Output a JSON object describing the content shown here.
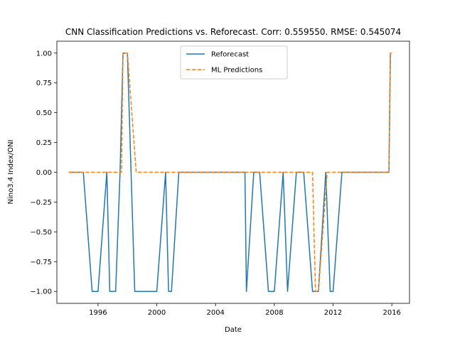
{
  "chart_data": {
    "type": "line",
    "title": "CNN Classification Predictions vs. Reforecast. Corr: 0.559550. RMSE: 0.545074",
    "xlabel": "Date",
    "ylabel": "Nino3.4 Index/ONI",
    "xlim": [
      1993.2,
      2017.2
    ],
    "ylim": [
      -1.1,
      1.1
    ],
    "x_ticks": [
      1996,
      2000,
      2004,
      2008,
      2012,
      2016
    ],
    "x_tick_labels": [
      "1996",
      "2000",
      "2004",
      "2008",
      "2012",
      "2016"
    ],
    "y_ticks": [
      -1.0,
      -0.75,
      -0.5,
      -0.25,
      0.0,
      0.25,
      0.5,
      0.75,
      1.0
    ],
    "y_tick_labels": [
      "−1.00",
      "−0.75",
      "−0.50",
      "−0.25",
      "0.00",
      "0.25",
      "0.50",
      "0.75",
      "1.00"
    ],
    "legend_position": "upper center",
    "series": [
      {
        "name": "Reforecast",
        "color": "#1f77b4",
        "style": "solid",
        "x": [
          1994.0,
          1995.0,
          1995.6,
          1996.0,
          1996.6,
          1996.8,
          1997.2,
          1997.5,
          1997.7,
          1998.0,
          1998.5,
          1999.0,
          2000.0,
          2000.6,
          2000.8,
          2001.0,
          2001.5,
          2002.0,
          2006.0,
          2006.1,
          2006.6,
          2007.0,
          2007.6,
          2008.0,
          2008.6,
          2008.9,
          2009.5,
          2010.0,
          2010.6,
          2011.0,
          2011.5,
          2011.8,
          2012.0,
          2012.6,
          2015.8,
          2015.9,
          2016.0
        ],
        "y": [
          0.0,
          0.0,
          -1.0,
          -1.0,
          0.0,
          -1.0,
          -1.0,
          0.0,
          1.0,
          1.0,
          -1.0,
          -1.0,
          -1.0,
          0.0,
          -1.0,
          -1.0,
          0.0,
          0.0,
          0.0,
          -1.0,
          0.0,
          0.0,
          -1.0,
          -1.0,
          0.0,
          -1.0,
          0.0,
          0.0,
          -1.0,
          -1.0,
          0.0,
          -1.0,
          -1.0,
          0.0,
          0.0,
          1.0,
          1.0
        ]
      },
      {
        "name": "ML Predictions",
        "color": "#ff7f0e",
        "style": "dashed",
        "x": [
          1994.0,
          1997.6,
          1997.7,
          1998.0,
          1998.6,
          2010.6,
          2010.8,
          2011.0,
          2011.6,
          2015.8,
          2015.9,
          2016.0
        ],
        "y": [
          0.0,
          0.0,
          1.0,
          1.0,
          0.0,
          0.0,
          -1.0,
          -1.0,
          0.0,
          0.0,
          1.0,
          1.0
        ]
      }
    ]
  }
}
